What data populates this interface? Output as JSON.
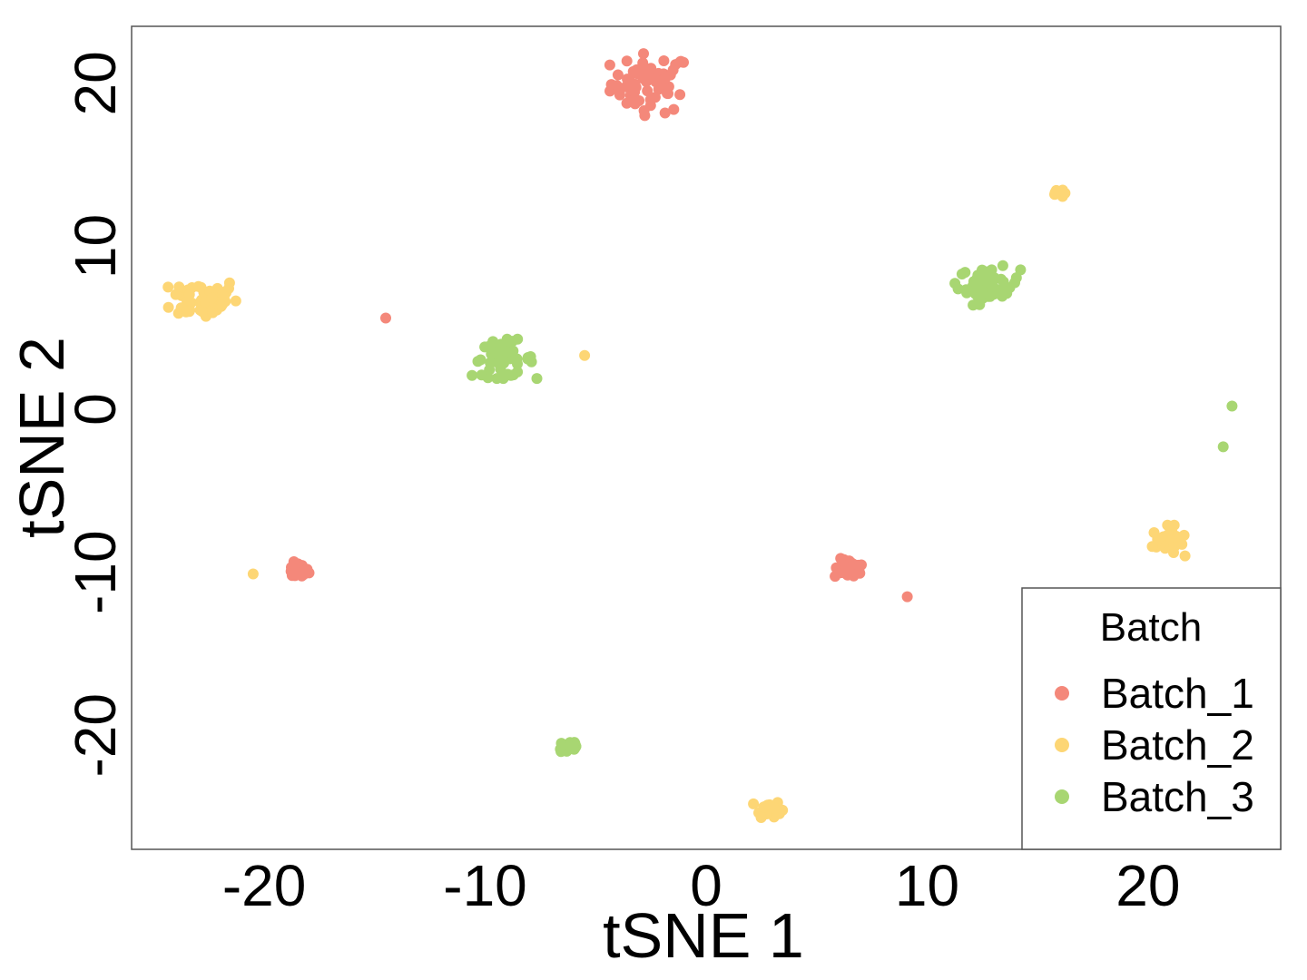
{
  "chart_data": {
    "type": "scatter",
    "title": "",
    "xlabel": "tSNE 1",
    "ylabel": "tSNE 2",
    "xlim": [
      -26,
      26
    ],
    "ylim": [
      -27,
      23.5
    ],
    "xticks": [
      -20,
      -10,
      0,
      10,
      20
    ],
    "yticks": [
      -20,
      -10,
      0,
      10,
      20
    ],
    "xtick_labels": [
      "-20",
      "-10",
      "0",
      "10",
      "20"
    ],
    "ytick_labels": [
      "-20",
      "-10",
      "0",
      "10",
      "20"
    ],
    "grid": false,
    "legend": {
      "title": "Batch",
      "position": "bottom-right"
    },
    "series": [
      {
        "name": "Batch_1",
        "color": "#F4887A",
        "clusters": [
          {
            "cx": -2.5,
            "cy": 20.0,
            "sx": 0.9,
            "sy": 0.9,
            "n": 60
          },
          {
            "cx": -18.5,
            "cy": -9.9,
            "sx": 0.25,
            "sy": 0.25,
            "n": 25
          },
          {
            "cx": 6.5,
            "cy": -9.8,
            "sx": 0.35,
            "sy": 0.3,
            "n": 25
          }
        ],
        "points": [
          [
            -14.5,
            5.6
          ],
          [
            9.1,
            -11.5
          ]
        ]
      },
      {
        "name": "Batch_2",
        "color": "#FDD675",
        "clusters": [
          {
            "cx": -22.7,
            "cy": 6.8,
            "sx": 0.75,
            "sy": 0.65,
            "n": 55
          },
          {
            "cx": 2.8,
            "cy": -24.5,
            "sx": 0.3,
            "sy": 0.25,
            "n": 25
          },
          {
            "cx": 20.9,
            "cy": -8.1,
            "sx": 0.35,
            "sy": 0.45,
            "n": 30
          },
          {
            "cx": 15.8,
            "cy": 13.3,
            "sx": 0.2,
            "sy": 0.15,
            "n": 6
          }
        ],
        "points": [
          [
            -20.5,
            -10.1
          ],
          [
            -5.5,
            3.3
          ]
        ]
      },
      {
        "name": "Batch_3",
        "color": "#A8D672",
        "clusters": [
          {
            "cx": 12.8,
            "cy": 7.6,
            "sx": 0.7,
            "sy": 0.55,
            "n": 55
          },
          {
            "cx": -9.2,
            "cy": 3.1,
            "sx": 0.7,
            "sy": 0.55,
            "n": 50
          },
          {
            "cx": -6.2,
            "cy": -20.7,
            "sx": 0.25,
            "sy": 0.25,
            "n": 25
          }
        ],
        "points": [
          [
            23.8,
            0.2
          ],
          [
            23.4,
            -2.3
          ]
        ]
      }
    ]
  }
}
